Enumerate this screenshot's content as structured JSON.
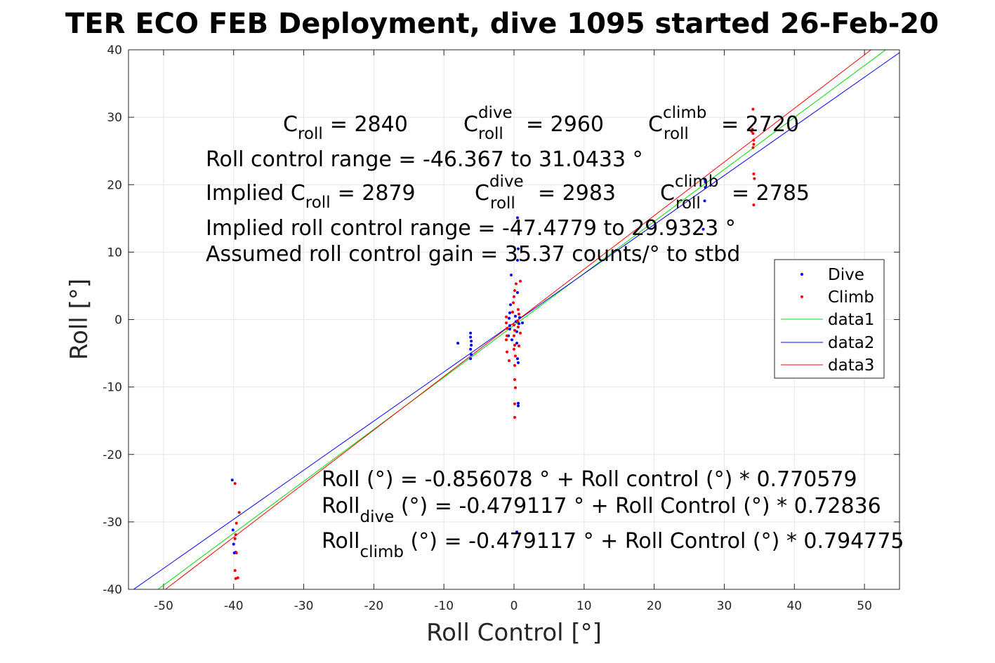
{
  "chart_data": {
    "type": "scatter",
    "title": "TER ECO FEB Deployment, dive 1095 started 26-Feb-20",
    "xlabel": "Roll Control [°]",
    "ylabel": "Roll [°]",
    "xlim": [
      -55,
      55
    ],
    "ylim": [
      -40,
      40
    ],
    "xticks": [
      "-50",
      "-40",
      "-30",
      "-20",
      "-10",
      "0",
      "10",
      "20",
      "30",
      "40",
      "50"
    ],
    "yticks": [
      "-40",
      "-30",
      "-20",
      "-10",
      "0",
      "10",
      "20",
      "30",
      "40"
    ],
    "grid": true,
    "legend_position": "right",
    "legend": [
      "Dive",
      "Climb",
      "data1",
      "data2",
      "data3"
    ],
    "colors": {
      "dive": "#0000ff",
      "climb": "#ff0000",
      "data1": "#00dd00",
      "data2": "#0000ff",
      "data3": "#ff0000"
    },
    "series": [
      {
        "name": "Dive",
        "mode": "markers",
        "points": [
          [
            -40.2,
            -23.8
          ],
          [
            -40.1,
            -31.2
          ],
          [
            -40.0,
            -33.3
          ],
          [
            -39.9,
            -34.6
          ],
          [
            -39.7,
            -34.5
          ],
          [
            -8.0,
            -3.5
          ],
          [
            -6.2,
            -2.0
          ],
          [
            -6.2,
            -2.6
          ],
          [
            -6.1,
            -3.2
          ],
          [
            -6.1,
            -3.8
          ],
          [
            -6.2,
            -4.4
          ],
          [
            -6.1,
            -5.2
          ],
          [
            -6.2,
            -5.8
          ],
          [
            -0.8,
            -2.4
          ],
          [
            -0.6,
            -1.4
          ],
          [
            -0.7,
            0.2
          ],
          [
            -0.6,
            1.0
          ],
          [
            -0.5,
            2.2
          ],
          [
            -0.6,
            -0.9
          ],
          [
            -0.4,
            6.6
          ],
          [
            -0.3,
            -3.0
          ],
          [
            0.2,
            0.5
          ],
          [
            0.3,
            -0.3
          ],
          [
            0.4,
            -1.8
          ],
          [
            0.4,
            -3.5
          ],
          [
            0.5,
            4.0
          ],
          [
            0.5,
            8.8
          ],
          [
            0.6,
            10.5
          ],
          [
            0.5,
            15.1
          ],
          [
            0.7,
            -0.6
          ],
          [
            0.8,
            0.3
          ],
          [
            0.5,
            -5.8
          ],
          [
            0.6,
            -6.4
          ],
          [
            0.6,
            -12.4
          ],
          [
            0.6,
            -12.8
          ],
          [
            1.2,
            -0.5
          ],
          [
            0.4,
            -31.5
          ],
          [
            27.2,
            20.8
          ],
          [
            27.3,
            20.4
          ],
          [
            27.3,
            19.6
          ],
          [
            27.2,
            17.6
          ],
          [
            27.0,
            13.4
          ]
        ]
      },
      {
        "name": "Climb",
        "mode": "markers",
        "points": [
          [
            -39.8,
            -24.3
          ],
          [
            -39.6,
            -30.2
          ],
          [
            -39.7,
            -31.9
          ],
          [
            -39.8,
            -32.5
          ],
          [
            -39.6,
            -34.6
          ],
          [
            -39.8,
            -37.2
          ],
          [
            -39.7,
            -38.4
          ],
          [
            -39.4,
            -38.3
          ],
          [
            -39.2,
            -28.6
          ],
          [
            -1.1,
            0.4
          ],
          [
            -1.1,
            -0.5
          ],
          [
            -1.0,
            -1.3
          ],
          [
            -1.0,
            -2.4
          ],
          [
            -1.1,
            -3.0
          ],
          [
            -1.0,
            -4.8
          ],
          [
            -0.7,
            -6.1
          ],
          [
            -0.2,
            1.1
          ],
          [
            -0.1,
            2.5
          ],
          [
            0.0,
            3.4
          ],
          [
            0.1,
            4.3
          ],
          [
            0.0,
            -0.8
          ],
          [
            0.1,
            -1.6
          ],
          [
            0.0,
            -2.4
          ],
          [
            0.1,
            -3.8
          ],
          [
            0.0,
            -4.4
          ],
          [
            0.2,
            -5.4
          ],
          [
            0.1,
            -6.8
          ],
          [
            0.1,
            -8.9
          ],
          [
            0.2,
            -10.1
          ],
          [
            0.1,
            -12.5
          ],
          [
            0.1,
            -14.5
          ],
          [
            0.3,
            5.3
          ],
          [
            0.5,
            -0.2
          ],
          [
            0.6,
            1.5
          ],
          [
            0.7,
            0.8
          ],
          [
            0.6,
            -1.1
          ],
          [
            0.9,
            -2.0
          ],
          [
            0.9,
            5.7
          ],
          [
            0.7,
            -3.9
          ],
          [
            34.1,
            31.2
          ],
          [
            34.0,
            28.2
          ],
          [
            34.1,
            27.6
          ],
          [
            33.9,
            27.9
          ],
          [
            34.2,
            26.6
          ],
          [
            34.2,
            26.0
          ],
          [
            34.1,
            25.5
          ],
          [
            34.2,
            21.6
          ],
          [
            34.3,
            20.9
          ],
          [
            34.2,
            17.0
          ]
        ]
      },
      {
        "name": "data1",
        "mode": "line",
        "points": [
          [
            -55,
            -43.24
          ],
          [
            55,
            41.52
          ]
        ]
      },
      {
        "name": "data2",
        "mode": "line",
        "points": [
          [
            -55,
            -40.54
          ],
          [
            55,
            39.58
          ]
        ]
      },
      {
        "name": "data3",
        "mode": "line",
        "points": [
          [
            -55,
            -44.19
          ],
          [
            55,
            43.23
          ]
        ]
      }
    ],
    "annotations": {
      "line1": {
        "c_roll_label": "C",
        "c_roll_sub": "roll",
        "c_roll_val": "= 2840",
        "c_dive_label": "C",
        "c_dive_sup": "dive",
        "c_dive_sub": "roll",
        "c_dive_val": "= 2960",
        "c_climb_label": "C",
        "c_climb_sup": "climb",
        "c_climb_sub": "roll",
        "c_climb_val": "= 2720"
      },
      "range": "Roll control range = -46.367 to 31.0433 °",
      "implied": {
        "label": "Implied C",
        "sub": "roll",
        "val": "= 2879",
        "dive_label": "C",
        "dive_sup": "dive",
        "dive_sub": "roll",
        "dive_val": "= 2983",
        "climb_label": "C",
        "climb_sup": "climb",
        "climb_sub": "roll",
        "climb_val": "= 2785"
      },
      "implied_range": "Implied roll control range = -47.4779 to 29.9323 °",
      "gain": "Assumed roll control gain = 35.37 counts/° to stbd",
      "fit": "Roll (°) = -0.856078 ° + Roll control (°) * 0.770579",
      "fit_dive": {
        "label": "Roll",
        "sub": "dive",
        "rest": " (°) = -0.479117 ° + Roll Control (°) * 0.72836"
      },
      "fit_climb": {
        "label": "Roll",
        "sub": "climb",
        "rest": " (°) = -0.479117 ° + Roll Control (°) * 0.794775"
      }
    }
  }
}
